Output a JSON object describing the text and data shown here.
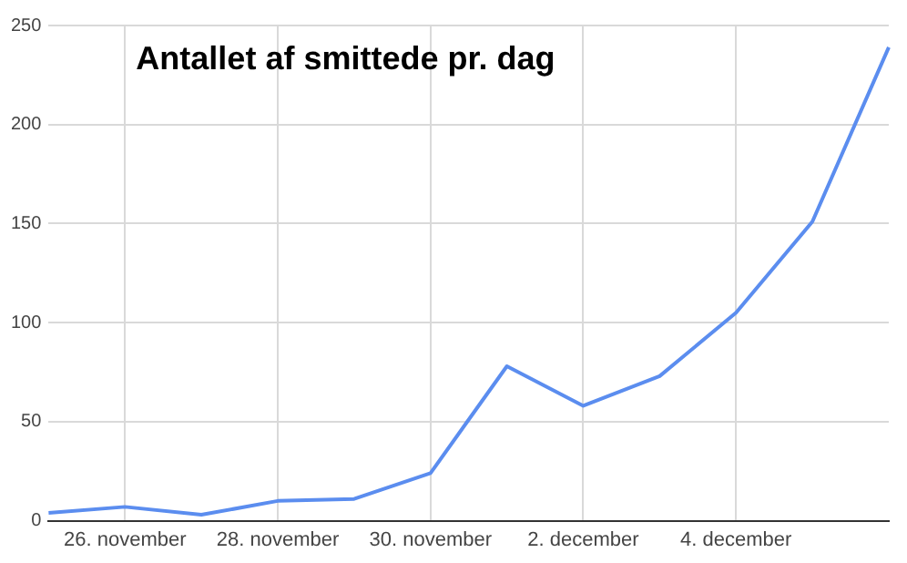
{
  "chart_data": {
    "type": "line",
    "title": "Antallet af smittede pr. dag",
    "categories": [
      null,
      "26. november",
      null,
      "28. november",
      null,
      "30. november",
      null,
      "2. december",
      null,
      "4. december",
      null,
      null
    ],
    "series": [
      {
        "color": "#5b8def",
        "values": [
          4,
          7,
          3,
          10,
          11,
          24,
          78,
          58,
          73,
          105,
          151,
          239
        ]
      }
    ],
    "ylim": [
      0,
      250
    ],
    "yticks": [
      0,
      50,
      100,
      150,
      200,
      250
    ],
    "grid": true,
    "legend": false,
    "marker": "none",
    "line_style": "solid"
  }
}
